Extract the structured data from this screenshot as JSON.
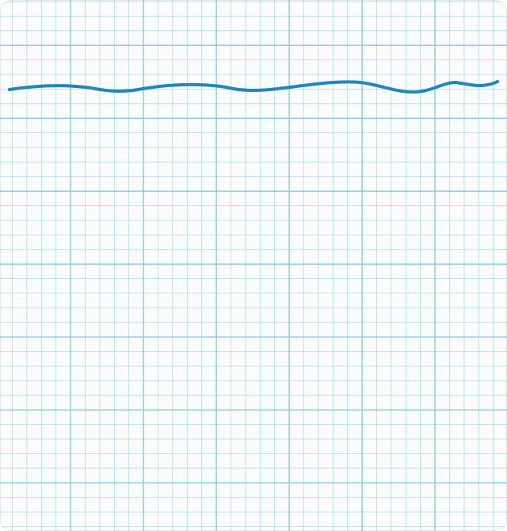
{
  "paper": {
    "icon": "graph-paper",
    "paper_color": "#fbfcfc",
    "grid_color": "#8fd3e2",
    "major_grid_color": "#6cc4d9",
    "ink_color": "#1f86bf"
  }
}
